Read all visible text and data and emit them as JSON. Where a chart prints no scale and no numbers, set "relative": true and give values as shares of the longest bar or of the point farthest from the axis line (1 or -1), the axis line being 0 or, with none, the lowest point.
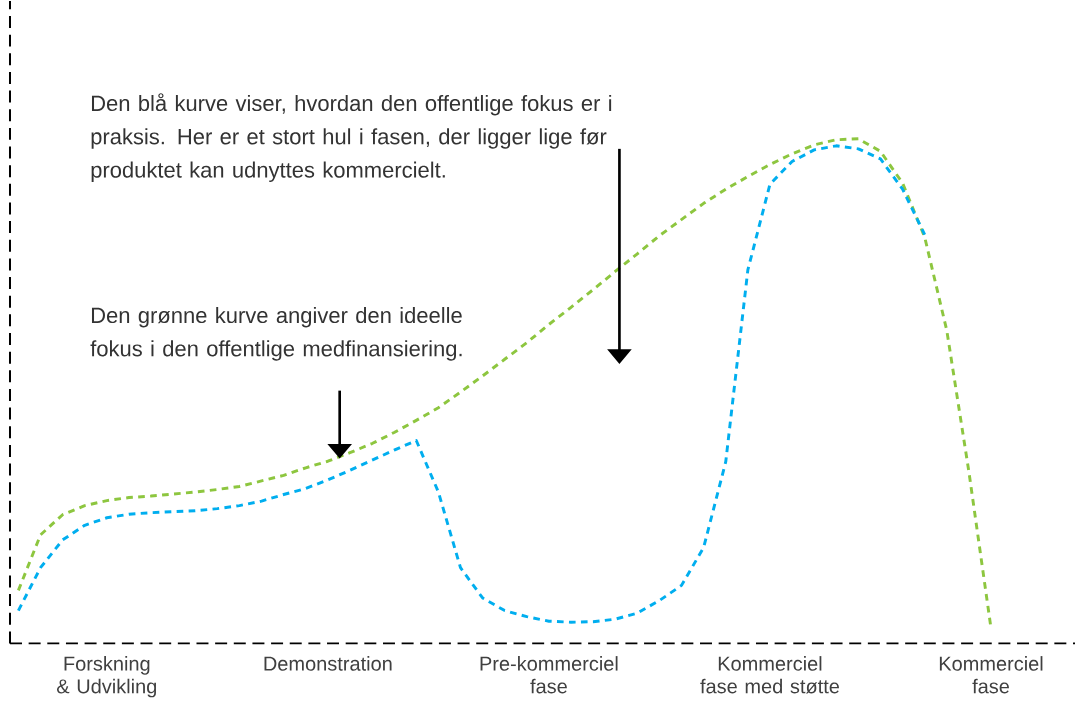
{
  "chart_data": {
    "type": "line",
    "relative": true,
    "line_style": "dashed",
    "marker": "none",
    "categories": [
      null,
      null,
      null,
      null,
      "Forskning & Udvikling",
      null,
      null,
      null,
      null,
      null,
      null,
      null,
      null,
      null,
      "Demonstration",
      null,
      null,
      null,
      null,
      null,
      null,
      null,
      null,
      null,
      "Pre-kommerciel fase",
      null,
      null,
      null,
      null,
      null,
      null,
      null,
      null,
      null,
      "Kommerciel fase med støtte",
      null,
      null,
      null,
      null,
      null,
      null,
      null,
      null,
      null,
      "Kommerciel fase"
    ],
    "series": [
      {
        "color": "#8dc63f",
        "values": [
          0.105,
          0.215,
          0.255,
          0.273,
          0.283,
          0.289,
          0.292,
          0.296,
          0.3,
          0.305,
          0.311,
          0.322,
          0.333,
          0.348,
          0.361,
          0.378,
          0.396,
          0.418,
          0.442,
          0.467,
          0.498,
          0.53,
          0.563,
          0.596,
          0.632,
          0.666,
          0.701,
          0.737,
          0.772,
          0.808,
          0.84,
          0.872,
          0.9,
          0.925,
          0.949,
          0.97,
          0.988,
          0.998,
          1.0,
          0.975,
          0.912,
          0.805,
          0.62,
          0.34,
          0.03
        ]
      },
      {
        "color": "#00aeef",
        "values": [
          0.065,
          0.15,
          0.205,
          0.234,
          0.249,
          0.256,
          0.259,
          0.261,
          0.263,
          0.267,
          0.273,
          0.282,
          0.295,
          0.307,
          0.324,
          0.343,
          0.363,
          0.383,
          0.402,
          0.3,
          0.15,
          0.09,
          0.065,
          0.053,
          0.044,
          0.042,
          0.043,
          0.048,
          0.06,
          0.085,
          0.115,
          0.19,
          0.36,
          0.74,
          0.91,
          0.955,
          0.978,
          0.986,
          0.98,
          0.96,
          0.9,
          0.81,
          null,
          null,
          null
        ]
      }
    ],
    "annotations": [
      "Den blå kurve viser, hvordan den offentlige fokus er i praksis. Her er et stort hul i fasen, der ligger lige før produktet kan udnyttes kommercielt.",
      "Den grønne kurve angiver den ideelle fokus i den offentlige medfinansiering."
    ]
  }
}
